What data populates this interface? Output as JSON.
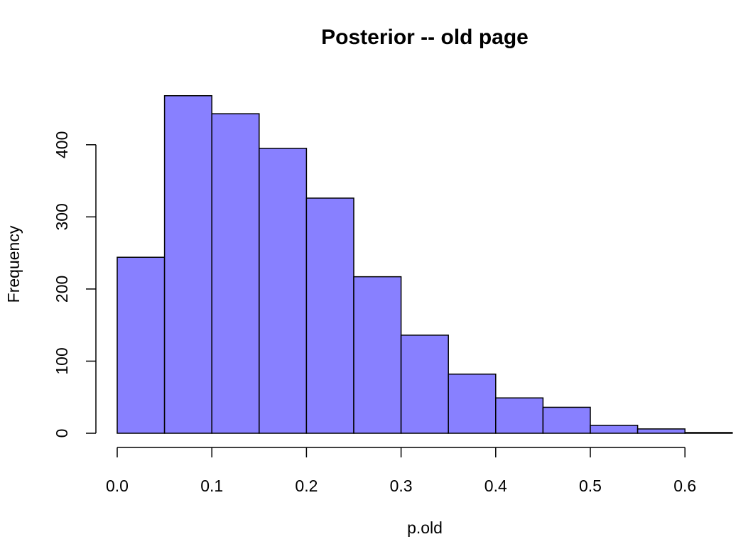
{
  "chart_data": {
    "type": "bar",
    "title": "Posterior -- old page",
    "xlabel": "p.old",
    "ylabel": "Frequency",
    "bin_edges": [
      0.0,
      0.05,
      0.1,
      0.15,
      0.2,
      0.25,
      0.3,
      0.35,
      0.4,
      0.45,
      0.5,
      0.55,
      0.6,
      0.65
    ],
    "values": [
      244,
      468,
      443,
      395,
      326,
      217,
      136,
      82,
      49,
      36,
      11,
      6,
      1
    ],
    "xlim": [
      0.0,
      0.65
    ],
    "ylim": [
      0,
      480
    ],
    "x_ticks": [
      0.0,
      0.1,
      0.2,
      0.3,
      0.4,
      0.5,
      0.6
    ],
    "x_tick_labels": [
      "0.0",
      "0.1",
      "0.2",
      "0.3",
      "0.4",
      "0.5",
      "0.6"
    ],
    "y_ticks": [
      0,
      100,
      200,
      300,
      400
    ],
    "y_tick_labels": [
      "0",
      "100",
      "200",
      "300",
      "400"
    ],
    "bar_color": "#8880ff",
    "edge_color": "#000000",
    "grid": false,
    "legend": "none"
  }
}
